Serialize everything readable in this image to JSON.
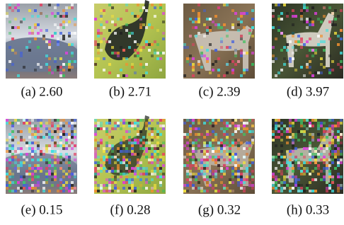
{
  "figure": {
    "panels": [
      {
        "caption": "(a) 2.60"
      },
      {
        "caption": "(b) 2.71"
      },
      {
        "caption": "(c) 2.39"
      },
      {
        "caption": "(d) 3.97"
      },
      {
        "caption": "(e) 0.15"
      },
      {
        "caption": "(f) 0.28"
      },
      {
        "caption": "(g) 0.32"
      },
      {
        "caption": "(h) 0.33"
      }
    ]
  }
}
